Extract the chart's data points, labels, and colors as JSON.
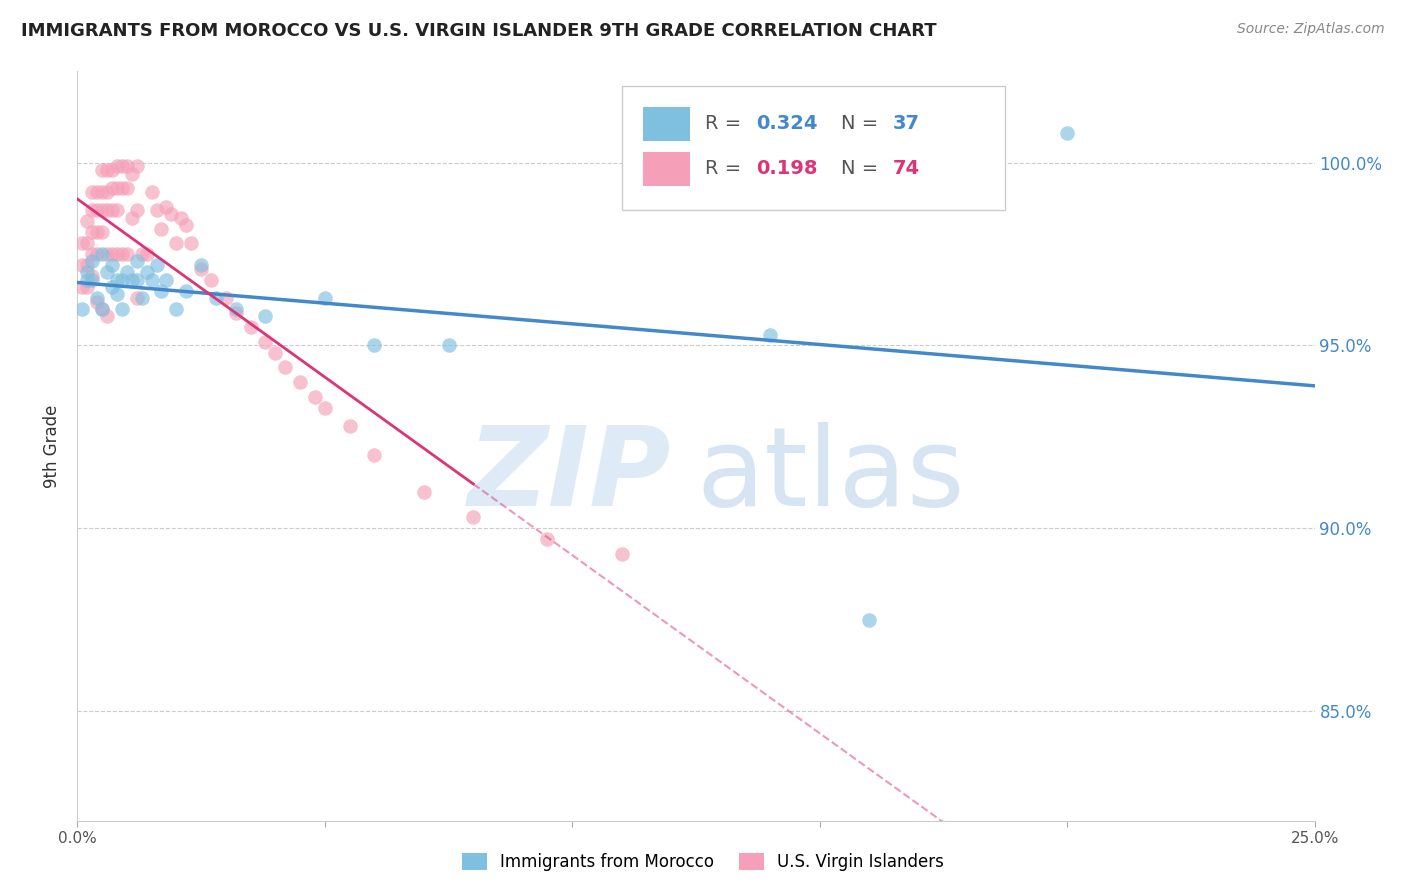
{
  "title": "IMMIGRANTS FROM MOROCCO VS U.S. VIRGIN ISLANDER 9TH GRADE CORRELATION CHART",
  "source": "Source: ZipAtlas.com",
  "ylabel": "9th Grade",
  "xlim": [
    0.0,
    0.25
  ],
  "ylim": [
    0.82,
    1.025
  ],
  "xticks": [
    0.0,
    0.05,
    0.1,
    0.15,
    0.2,
    0.25
  ],
  "xtick_labels": [
    "0.0%",
    "",
    "",
    "",
    "",
    "25.0%"
  ],
  "yticks": [
    0.85,
    0.9,
    0.95,
    1.0
  ],
  "ytick_labels": [
    "85.0%",
    "90.0%",
    "95.0%",
    "100.0%"
  ],
  "blue_color": "#7fbfdf",
  "pink_color": "#f5a0b8",
  "blue_line_color": "#4488cc",
  "pink_line_color": "#dd3377",
  "blue_r": "0.324",
  "blue_n": "37",
  "pink_r": "0.198",
  "pink_n": "74",
  "blue_scatter_x": [
    0.001,
    0.002,
    0.002,
    0.003,
    0.003,
    0.004,
    0.005,
    0.005,
    0.006,
    0.007,
    0.007,
    0.008,
    0.008,
    0.009,
    0.009,
    0.01,
    0.011,
    0.012,
    0.012,
    0.013,
    0.014,
    0.015,
    0.016,
    0.017,
    0.018,
    0.02,
    0.022,
    0.025,
    0.028,
    0.032,
    0.038,
    0.05,
    0.06,
    0.075,
    0.14,
    0.16,
    0.2
  ],
  "blue_scatter_y": [
    0.96,
    0.97,
    0.968,
    0.973,
    0.968,
    0.963,
    0.96,
    0.975,
    0.97,
    0.972,
    0.966,
    0.968,
    0.964,
    0.968,
    0.96,
    0.97,
    0.968,
    0.973,
    0.968,
    0.963,
    0.97,
    0.968,
    0.972,
    0.965,
    0.968,
    0.96,
    0.965,
    0.972,
    0.963,
    0.96,
    0.958,
    0.963,
    0.95,
    0.95,
    0.953,
    0.875,
    1.008
  ],
  "pink_scatter_x": [
    0.001,
    0.001,
    0.001,
    0.002,
    0.002,
    0.002,
    0.002,
    0.003,
    0.003,
    0.003,
    0.003,
    0.003,
    0.004,
    0.004,
    0.004,
    0.004,
    0.005,
    0.005,
    0.005,
    0.005,
    0.006,
    0.006,
    0.006,
    0.006,
    0.007,
    0.007,
    0.007,
    0.007,
    0.008,
    0.008,
    0.008,
    0.008,
    0.009,
    0.009,
    0.009,
    0.01,
    0.01,
    0.01,
    0.011,
    0.011,
    0.012,
    0.012,
    0.013,
    0.014,
    0.015,
    0.016,
    0.017,
    0.018,
    0.019,
    0.02,
    0.021,
    0.022,
    0.023,
    0.025,
    0.027,
    0.03,
    0.032,
    0.035,
    0.038,
    0.04,
    0.042,
    0.045,
    0.048,
    0.05,
    0.055,
    0.06,
    0.07,
    0.08,
    0.095,
    0.11,
    0.012,
    0.004,
    0.005,
    0.006
  ],
  "pink_scatter_y": [
    0.978,
    0.972,
    0.966,
    0.984,
    0.978,
    0.972,
    0.966,
    0.992,
    0.987,
    0.981,
    0.975,
    0.969,
    0.992,
    0.987,
    0.981,
    0.975,
    0.998,
    0.992,
    0.987,
    0.981,
    0.998,
    0.992,
    0.987,
    0.975,
    0.998,
    0.993,
    0.987,
    0.975,
    0.999,
    0.993,
    0.987,
    0.975,
    0.999,
    0.993,
    0.975,
    0.999,
    0.993,
    0.975,
    0.997,
    0.985,
    0.999,
    0.987,
    0.975,
    0.975,
    0.992,
    0.987,
    0.982,
    0.988,
    0.986,
    0.978,
    0.985,
    0.983,
    0.978,
    0.971,
    0.968,
    0.963,
    0.959,
    0.955,
    0.951,
    0.948,
    0.944,
    0.94,
    0.936,
    0.933,
    0.928,
    0.92,
    0.91,
    0.903,
    0.897,
    0.893,
    0.963,
    0.962,
    0.96,
    0.958
  ],
  "background_color": "#ffffff",
  "grid_color": "#cccccc",
  "watermark_zip_color": "#c8dff0",
  "watermark_atlas_color": "#b0cde8"
}
